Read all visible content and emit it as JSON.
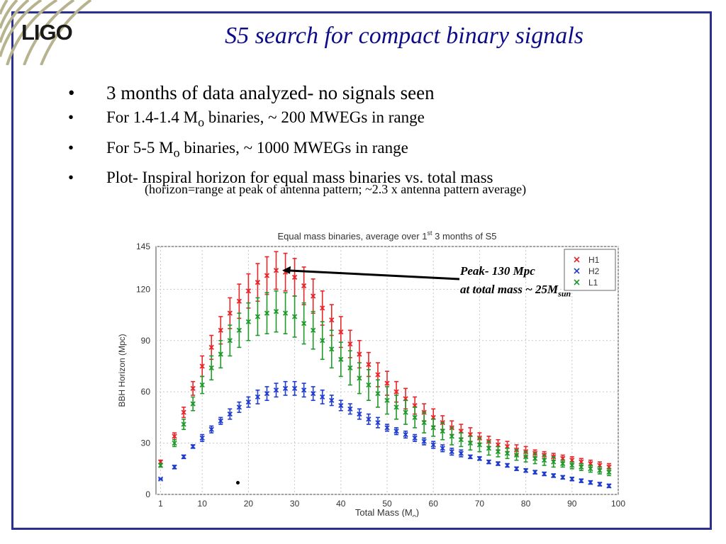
{
  "slide": {
    "logo": "LIGO",
    "title": "S5 search for compact binary signals",
    "bullets": [
      {
        "pre": "3 months of data analyzed- no signals seen"
      },
      {
        "pre": "For 1.4-1.4 M",
        "sub": "o",
        "post": " binaries, ~ 200 MWEGs in range"
      },
      {
        "pre": "For 5-5 M",
        "sub": "o",
        "post": " binaries, ~ 1000 MWEGs in range"
      },
      {
        "pre": "Plot- Inspiral horizon for equal mass binaries vs. total mass"
      }
    ],
    "note": "(horizon=range at peak of antenna pattern; ~2.3 x antenna pattern average)",
    "annotation": {
      "line1": "Peak- 130 Mpc",
      "line2_pre": "at total mass ~ 25M",
      "line2_sub": "sun"
    },
    "colors": {
      "frame": "#2b2f8f",
      "title": "#0d0d8a",
      "h1": "#e8262a",
      "h2": "#1f3ccf",
      "l1": "#1f9a2a"
    }
  },
  "chart_data": {
    "type": "scatter",
    "title_pre": "Equal mass binaries, average over 1",
    "title_sup": "st",
    "title_post": " 3 months of S5",
    "xlabel_pre": "Total Mass (M",
    "xlabel_sub": "o",
    "xlabel_post": ")",
    "ylabel": "BBH Horizon (Mpc)",
    "xlim": [
      0,
      100
    ],
    "ylim": [
      0,
      145
    ],
    "xticks": [
      1,
      10,
      20,
      30,
      40,
      50,
      60,
      70,
      80,
      90,
      100
    ],
    "yticks": [
      0,
      30,
      60,
      90,
      120,
      145
    ],
    "grid": true,
    "legend_position": "top-right",
    "x": [
      1,
      4,
      6,
      8,
      10,
      12,
      14,
      16,
      18,
      20,
      22,
      24,
      26,
      28,
      30,
      32,
      34,
      36,
      38,
      40,
      42,
      44,
      46,
      48,
      50,
      52,
      54,
      56,
      58,
      60,
      62,
      64,
      66,
      68,
      70,
      72,
      74,
      76,
      78,
      80,
      82,
      84,
      86,
      88,
      90,
      92,
      94,
      96,
      98
    ],
    "series": [
      {
        "name": "H1",
        "color": "#e8262a",
        "values": [
          19,
          34,
          48,
          62,
          75,
          86,
          96,
          106,
          113,
          119,
          124,
          128,
          131,
          130,
          127,
          122,
          116,
          109,
          102,
          95,
          88,
          82,
          76,
          70,
          65,
          60,
          56,
          52,
          48,
          45,
          42,
          39,
          37,
          35,
          33,
          31,
          29,
          28,
          26,
          25,
          24,
          23,
          22,
          21,
          20,
          19,
          18,
          17,
          16
        ],
        "err": [
          1,
          2,
          3,
          4,
          6,
          7,
          8,
          9,
          10,
          10,
          11,
          11,
          11,
          11,
          11,
          11,
          10,
          10,
          9,
          9,
          8,
          8,
          7,
          7,
          7,
          6,
          6,
          5,
          5,
          5,
          4,
          4,
          4,
          4,
          3,
          3,
          3,
          3,
          3,
          3,
          2,
          2,
          2,
          2,
          2,
          2,
          2,
          2,
          2
        ]
      },
      {
        "name": "H2",
        "color": "#1f3ccf",
        "values": [
          9,
          16,
          22,
          28,
          33,
          38,
          43,
          47,
          51,
          54,
          57,
          59,
          61,
          62,
          62,
          61,
          59,
          57,
          55,
          52,
          50,
          47,
          44,
          42,
          39,
          37,
          35,
          33,
          31,
          29,
          27,
          25,
          24,
          22,
          21,
          19,
          18,
          17,
          15,
          14,
          13,
          12,
          11,
          10,
          9,
          8,
          7,
          6,
          5
        ],
        "err": [
          0,
          1,
          1,
          1,
          2,
          2,
          2,
          3,
          3,
          3,
          4,
          4,
          4,
          4,
          4,
          4,
          4,
          4,
          3,
          3,
          3,
          3,
          3,
          3,
          2,
          2,
          2,
          2,
          2,
          2,
          2,
          2,
          2,
          1,
          1,
          1,
          1,
          1,
          1,
          1,
          1,
          1,
          1,
          1,
          1,
          1,
          1,
          1,
          1
        ]
      },
      {
        "name": "L1",
        "color": "#1f9a2a",
        "values": [
          17,
          30,
          41,
          53,
          64,
          74,
          82,
          90,
          96,
          101,
          104,
          106,
          107,
          106,
          104,
          100,
          96,
          90,
          85,
          79,
          74,
          68,
          64,
          59,
          55,
          51,
          48,
          45,
          42,
          39,
          37,
          34,
          32,
          30,
          29,
          27,
          25,
          24,
          23,
          22,
          21,
          20,
          19,
          18,
          17,
          16,
          15,
          14,
          13
        ],
        "err": [
          1,
          2,
          3,
          4,
          5,
          7,
          8,
          9,
          10,
          11,
          11,
          12,
          12,
          12,
          12,
          12,
          11,
          11,
          11,
          10,
          10,
          9,
          9,
          8,
          8,
          7,
          7,
          6,
          6,
          5,
          5,
          5,
          4,
          4,
          4,
          4,
          3,
          3,
          3,
          3,
          3,
          3,
          3,
          2,
          2,
          2,
          2,
          2,
          2
        ]
      }
    ]
  }
}
